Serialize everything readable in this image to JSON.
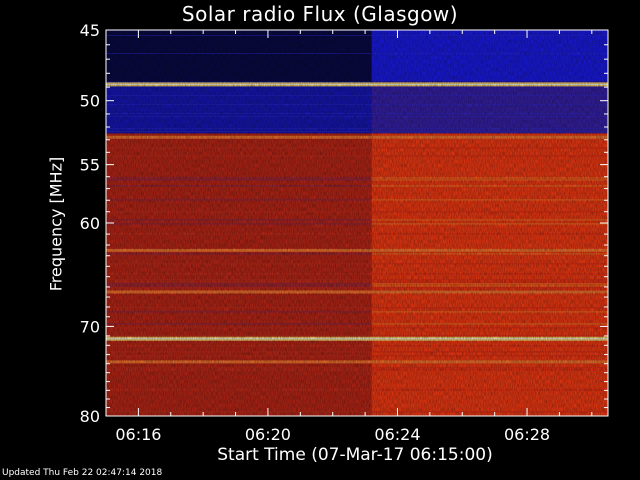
{
  "chart_data": {
    "type": "heatmap",
    "title": "Solar radio Flux (Glasgow)",
    "xlabel": "Start Time (07-Mar-17 06:15:00)",
    "ylabel": "Frequency [MHz]",
    "y_axis": {
      "range": [
        45,
        80
      ],
      "direction": "top-to-bottom",
      "scale": "log",
      "ticks": [
        45,
        50,
        55,
        60,
        70,
        80
      ]
    },
    "x_axis": {
      "range_minutes": [
        0,
        15.5
      ],
      "ticks": [
        "06:16",
        "06:20",
        "06:24",
        "06:28"
      ],
      "tick_minutes": [
        1,
        5,
        9,
        13
      ]
    },
    "intensity_scale": "blue (low) to red to yellow/white (high)",
    "observation_step_minute": 8.2,
    "bright_bands_mhz": [
      48.8,
      52.8,
      62.5,
      66.5,
      71.3,
      73.8
    ],
    "colors": {
      "low": "#1414ff",
      "mid": "#c8281c",
      "high": "#ffdc6e",
      "peak": "#ffffff"
    }
  },
  "footer": "Updated Thu Feb 22 02:47:14 2018"
}
